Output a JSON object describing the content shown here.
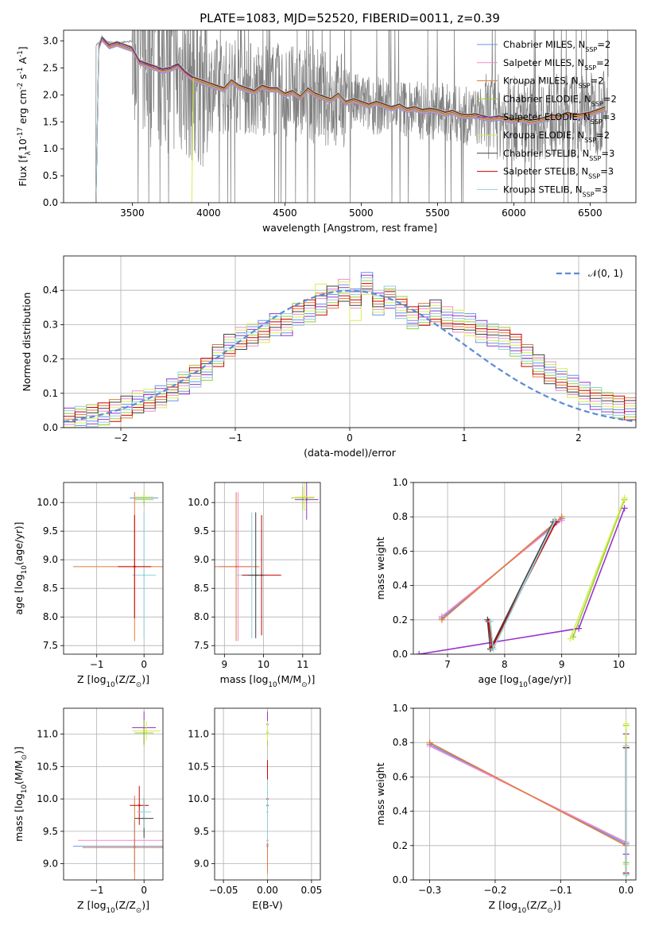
{
  "figure": {
    "title": "PLATE=1083, MJD=52520, FIBERID=0011, z=0.39"
  },
  "colors": {
    "models": [
      "#6495ed",
      "#f08ccf",
      "#e07b39",
      "#9acd32",
      "#9932cc",
      "#d4f04f",
      "#404040",
      "#cc0000",
      "#8fd0d8"
    ],
    "observed_spectrum": "#808080",
    "normal_curve": "#5b8bd6",
    "grid": "#b0b0b0"
  },
  "chart_data": [
    {
      "id": "spectrum",
      "type": "line",
      "title": "PLATE=1083, MJD=52520, FIBERID=0011, z=0.39",
      "xlabel": "wavelength [Angstrom, rest frame]",
      "ylabel": "Flux [f$_\\lambda$10$^{-17}$ erg cm$^{-2}$ s$^{-1}$ A$^{-1}$]",
      "xlim": [
        3050,
        6800
      ],
      "ylim": [
        0,
        3.2
      ],
      "xticks": [
        3500,
        4000,
        4500,
        5000,
        5500,
        6000,
        6500
      ],
      "yticks": [
        0.0,
        0.5,
        1.0,
        1.5,
        2.0,
        2.5,
        3.0
      ],
      "grid": false,
      "legend_position": "top-right",
      "legend": [
        "Chabrier MILES, N$_{SSP}$=2",
        "Salpeter MILES, N$_{SSP}$=2",
        "Kroupa MILES, N$_{SSP}$=2",
        "Chabrier ELODIE, N$_{SSP}$=2",
        "Salpeter ELODIE, N$_{SSP}$=3",
        "Kroupa ELODIE, N$_{SSP}$=2",
        "Chabrier STELIB, N$_{SSP}$=3",
        "Salpeter STELIB, N$_{SSP}$=3",
        "Kroupa STELIB, N$_{SSP}$=3"
      ],
      "observed_envelope": {
        "x": [
          3250,
          3300,
          3400,
          3500,
          3600,
          3700,
          3800,
          3900,
          4000,
          4100,
          4200,
          4300,
          4400,
          4500,
          4600,
          4700,
          4800,
          4900,
          5000,
          5100,
          5200,
          5300,
          5400,
          5500,
          5600,
          5700,
          5800,
          5900,
          6000,
          6100,
          6200,
          6300,
          6400,
          6500,
          6600
        ],
        "y": [
          2.9,
          3.0,
          2.95,
          3.0,
          2.6,
          2.5,
          2.45,
          2.3,
          2.2,
          2.15,
          2.2,
          2.1,
          2.1,
          2.05,
          2.0,
          2.0,
          1.9,
          1.9,
          1.85,
          1.8,
          1.8,
          1.75,
          1.7,
          1.7,
          1.65,
          1.6,
          1.6,
          1.6,
          1.55,
          1.55,
          1.6,
          1.6,
          1.6,
          1.65,
          1.7
        ]
      },
      "model_curve": {
        "x": [
          3250,
          3280,
          3300,
          3350,
          3400,
          3450,
          3500,
          3550,
          3600,
          3650,
          3700,
          3750,
          3800,
          3850,
          3900,
          3950,
          4000,
          4050,
          4100,
          4150,
          4200,
          4250,
          4300,
          4350,
          4400,
          4450,
          4500,
          4550,
          4600,
          4650,
          4700,
          4750,
          4800,
          4850,
          4900,
          4950,
          5000,
          5050,
          5100,
          5150,
          5200,
          5250,
          5300,
          5350,
          5400,
          5450,
          5500,
          5550,
          5600,
          5650,
          5700,
          5750,
          5800,
          5850,
          5900,
          5950,
          6000,
          6050,
          6100,
          6150,
          6200,
          6250,
          6300,
          6350,
          6400,
          6450,
          6500,
          6550,
          6600
        ],
        "y": [
          2.92,
          2.88,
          3.05,
          2.9,
          2.95,
          2.9,
          2.85,
          2.6,
          2.55,
          2.5,
          2.45,
          2.48,
          2.55,
          2.4,
          2.3,
          2.25,
          2.2,
          2.15,
          2.1,
          2.25,
          2.15,
          2.1,
          2.05,
          2.15,
          2.1,
          2.1,
          2.0,
          2.05,
          1.95,
          2.1,
          2.0,
          1.95,
          1.9,
          2.0,
          1.85,
          1.9,
          1.85,
          1.8,
          1.85,
          1.8,
          1.75,
          1.8,
          1.72,
          1.75,
          1.7,
          1.72,
          1.7,
          1.65,
          1.68,
          1.62,
          1.6,
          1.62,
          1.58,
          1.55,
          1.58,
          1.55,
          1.52,
          1.55,
          1.5,
          1.52,
          1.55,
          1.6,
          1.58,
          1.65,
          1.6,
          1.62,
          1.65,
          1.7,
          1.75
        ]
      }
    },
    {
      "id": "residuals",
      "type": "line",
      "xlabel": "(data-model)/error",
      "ylabel": "Normed distribution",
      "xlim": [
        -2.5,
        2.5
      ],
      "ylim": [
        0,
        0.5
      ],
      "xticks": [
        -2,
        -1,
        0,
        1,
        2
      ],
      "yticks": [
        0.0,
        0.1,
        0.2,
        0.3,
        0.4
      ],
      "grid": true,
      "legend_position": "top-right",
      "legend": [
        "$\\mathcal{N}(0, 1)$"
      ],
      "bin_width": 0.1,
      "hist_x_start": -2.5,
      "hist_base": [
        0.025,
        0.03,
        0.035,
        0.04,
        0.05,
        0.06,
        0.075,
        0.08,
        0.09,
        0.11,
        0.13,
        0.15,
        0.17,
        0.21,
        0.24,
        0.26,
        0.27,
        0.28,
        0.3,
        0.3,
        0.33,
        0.34,
        0.36,
        0.38,
        0.4,
        0.38,
        0.42,
        0.36,
        0.38,
        0.35,
        0.32,
        0.33,
        0.34,
        0.32,
        0.31,
        0.3,
        0.28,
        0.27,
        0.26,
        0.24,
        0.21,
        0.18,
        0.16,
        0.14,
        0.12,
        0.1,
        0.085,
        0.07,
        0.06,
        0.055
      ]
    },
    {
      "id": "age_vs_Z",
      "type": "scatter",
      "xlabel": "Z [log$_{10}$(Z/Z$_\\odot$)]",
      "ylabel": "age  [log$_{10}$(age/yr)]",
      "xlim": [
        -1.7,
        0.4
      ],
      "ylim": [
        7.35,
        10.35
      ],
      "xticks": [
        -1,
        0
      ],
      "yticks": [
        7.5,
        8.0,
        8.5,
        9.0,
        9.5,
        10.0
      ],
      "grid": true,
      "points": [
        {
          "x": 0.0,
          "y": 10.08,
          "xerr": 0.3,
          "yerr": 0.08,
          "s": 0
        },
        {
          "x": -0.2,
          "y": 8.88,
          "xerr": 1.3,
          "yerr": 1.3,
          "s": 2
        },
        {
          "x": 0.0,
          "y": 10.05,
          "xerr": 0.2,
          "yerr": 0.1,
          "s": 3
        },
        {
          "x": 0.0,
          "y": 8.73,
          "xerr": 0.25,
          "yerr": 1.1,
          "s": 8
        },
        {
          "x": 0.0,
          "y": 10.1,
          "xerr": 0.2,
          "yerr": 0.08,
          "s": 5
        },
        {
          "x": -0.2,
          "y": 8.88,
          "xerr": 0.35,
          "yerr": 0.9,
          "s": 7
        }
      ]
    },
    {
      "id": "age_vs_mass",
      "type": "scatter",
      "xlabel": "mass [log$_{10}$(M/M$_\\odot$)]",
      "ylabel": "",
      "xlim": [
        8.75,
        11.45
      ],
      "ylim": [
        7.35,
        10.35
      ],
      "xticks": [
        9,
        10,
        11
      ],
      "yticks": [
        7.5,
        8.0,
        8.5,
        9.0,
        9.5,
        10.0
      ],
      "grid": true,
      "points": [
        {
          "x": 9.3,
          "y": 8.88,
          "xerr": 0.4,
          "yerr": 0,
          "s": 0
        },
        {
          "x": 9.35,
          "y": 8.88,
          "xerr": 0.5,
          "yerr": 1.3,
          "s": 1
        },
        {
          "x": 9.3,
          "y": 8.88,
          "xerr": 0.6,
          "yerr": 1.3,
          "s": 2
        },
        {
          "x": 9.7,
          "y": 8.73,
          "xerr": 0.4,
          "yerr": 1.1,
          "s": 8
        },
        {
          "x": 9.95,
          "y": 8.73,
          "xerr": 0.5,
          "yerr": 1.05,
          "s": 7
        },
        {
          "x": 11.0,
          "y": 10.08,
          "xerr": 0.3,
          "yerr": 0.2,
          "s": 3
        },
        {
          "x": 11.1,
          "y": 10.05,
          "xerr": 0.3,
          "yerr": 0.35,
          "s": 4
        },
        {
          "x": 11.05,
          "y": 10.1,
          "xerr": 0.25,
          "yerr": 0.25,
          "s": 5
        },
        {
          "x": 9.8,
          "y": 8.73,
          "xerr": 0.2,
          "yerr": 1.1,
          "s": 6
        }
      ]
    },
    {
      "id": "weight_vs_age",
      "type": "line",
      "xlabel": "age  [log$_{10}$(age/yr)]",
      "ylabel": "mass weight",
      "xlim": [
        6.4,
        10.3
      ],
      "ylim": [
        0,
        1.0
      ],
      "xticks": [
        7,
        8,
        9,
        10
      ],
      "yticks": [
        0.0,
        0.2,
        0.4,
        0.6,
        0.8,
        1.0
      ],
      "grid": true,
      "series": [
        {
          "s": 0,
          "x": [
            6.9,
            9.0
          ],
          "y": [
            0.21,
            0.79
          ]
        },
        {
          "s": 1,
          "x": [
            6.9,
            9.0
          ],
          "y": [
            0.22,
            0.78
          ]
        },
        {
          "s": 2,
          "x": [
            6.9,
            9.0
          ],
          "y": [
            0.2,
            0.8
          ]
        },
        {
          "s": 3,
          "x": [
            9.2,
            10.1
          ],
          "y": [
            0.1,
            0.9
          ]
        },
        {
          "s": 4,
          "x": [
            6.5,
            9.3,
            10.1
          ],
          "y": [
            0.0,
            0.15,
            0.85
          ]
        },
        {
          "s": 5,
          "x": [
            9.15,
            10.1
          ],
          "y": [
            0.09,
            0.91
          ]
        },
        {
          "s": 6,
          "x": [
            7.7,
            7.75,
            8.85
          ],
          "y": [
            0.2,
            0.03,
            0.77
          ]
        },
        {
          "s": 7,
          "x": [
            7.72,
            7.78,
            8.9
          ],
          "y": [
            0.19,
            0.04,
            0.77
          ]
        },
        {
          "s": 8,
          "x": [
            7.75,
            7.8,
            8.88
          ],
          "y": [
            0.19,
            0.03,
            0.78
          ]
        }
      ]
    },
    {
      "id": "mass_vs_Z",
      "type": "scatter",
      "xlabel": "Z [log$_{10}$(Z/Z$_\\odot$)]",
      "ylabel": "mass [log$_{10}$(M/M$_\\odot$)]",
      "xlim": [
        -1.7,
        0.4
      ],
      "ylim": [
        8.75,
        11.4
      ],
      "xticks": [
        -1,
        0
      ],
      "yticks": [
        9.0,
        9.5,
        10.0,
        10.5,
        11.0
      ],
      "grid": true,
      "points": [
        {
          "x": 0.0,
          "y": 11.1,
          "xerr": 0.25,
          "yerr": 0.25,
          "s": 4
        },
        {
          "x": 0.05,
          "y": 11.05,
          "xerr": 0.3,
          "yerr": 0.15,
          "s": 5
        },
        {
          "x": 0.0,
          "y": 11.02,
          "xerr": 0.2,
          "yerr": 0.2,
          "s": 3
        },
        {
          "x": -0.2,
          "y": 9.27,
          "xerr": 1.3,
          "yerr": 0.4,
          "s": 0
        },
        {
          "x": -0.2,
          "y": 9.36,
          "xerr": 1.2,
          "yerr": 0,
          "s": 1
        },
        {
          "x": -0.2,
          "y": 9.25,
          "xerr": 1.1,
          "yerr": 0.8,
          "s": 2
        },
        {
          "x": -0.1,
          "y": 9.9,
          "xerr": 0.2,
          "yerr": 0.3,
          "s": 7
        },
        {
          "x": 0.0,
          "y": 9.7,
          "xerr": 0.2,
          "yerr": 0.3,
          "s": 6
        },
        {
          "x": 0.0,
          "y": 9.8,
          "xerr": 0.15,
          "yerr": 0.25,
          "s": 8
        }
      ]
    },
    {
      "id": "mass_vs_ebv",
      "type": "scatter",
      "xlabel": "E(B-V)",
      "ylabel": "",
      "xlim": [
        -0.06,
        0.06
      ],
      "ylim": [
        8.75,
        11.4
      ],
      "xticks": [
        -0.05,
        0.0,
        0.05
      ],
      "xtick_labels": [
        "−0.05",
        "0.00",
        "0.05"
      ],
      "yticks": [
        9.0,
        9.5,
        10.0,
        10.5,
        11.0
      ],
      "grid": true,
      "points": [
        {
          "x": 0.0,
          "y": 9.27,
          "xerr": 0,
          "yerr": 0.4,
          "s": 0
        },
        {
          "x": 0.0,
          "y": 9.36,
          "xerr": 0,
          "yerr": 0.35,
          "s": 1
        },
        {
          "x": 0.0,
          "y": 9.3,
          "xerr": 0,
          "yerr": 0.45,
          "s": 2
        },
        {
          "x": 0.0,
          "y": 11.02,
          "xerr": 0,
          "yerr": 0.2,
          "s": 3
        },
        {
          "x": 0.0,
          "y": 11.15,
          "xerr": 0,
          "yerr": 0.2,
          "s": 4
        },
        {
          "x": 0.0,
          "y": 11.05,
          "xerr": 0,
          "yerr": 0.15,
          "s": 5
        },
        {
          "x": 0.0,
          "y": 9.9,
          "xerr": 0,
          "yerr": 0.6,
          "s": 6
        },
        {
          "x": 0.0,
          "y": 10.0,
          "xerr": 0,
          "yerr": 0.6,
          "s": 7
        },
        {
          "x": 0.0,
          "y": 9.8,
          "xerr": 0,
          "yerr": 0.5,
          "s": 8
        }
      ]
    },
    {
      "id": "weight_vs_Z",
      "type": "line",
      "xlabel": "Z [log$_{10}$(Z/Z$_\\odot$)]",
      "ylabel": "mass weight",
      "xlim": [
        -0.325,
        0.015
      ],
      "ylim": [
        0,
        1.0
      ],
      "xticks": [
        -0.3,
        -0.2,
        -0.1,
        0.0
      ],
      "xtick_labels": [
        "−0.3",
        "−0.2",
        "−0.1",
        "0.0"
      ],
      "yticks": [
        0.0,
        0.2,
        0.4,
        0.6,
        0.8,
        1.0
      ],
      "grid": true,
      "series": [
        {
          "s": 0,
          "x": [
            -0.3,
            0.0
          ],
          "y": [
            0.79,
            0.21
          ]
        },
        {
          "s": 1,
          "x": [
            -0.3,
            0.0
          ],
          "y": [
            0.78,
            0.22
          ]
        },
        {
          "s": 2,
          "x": [
            -0.3,
            0.0
          ],
          "y": [
            0.8,
            0.2
          ]
        },
        {
          "s": 3,
          "x": [
            0.0,
            0.0
          ],
          "y": [
            0.1,
            0.9
          ]
        },
        {
          "s": 4,
          "x": [
            0.0,
            0.0
          ],
          "y": [
            0.15,
            0.85
          ]
        },
        {
          "s": 5,
          "x": [
            0.0,
            0.0
          ],
          "y": [
            0.09,
            0.91
          ]
        },
        {
          "s": 6,
          "x": [
            0.0,
            0.0
          ],
          "y": [
            0.03,
            0.77
          ]
        },
        {
          "s": 7,
          "x": [
            0.0,
            0.0
          ],
          "y": [
            0.04,
            0.77
          ]
        },
        {
          "s": 8,
          "x": [
            0.0,
            0.0
          ],
          "y": [
            0.03,
            0.78
          ]
        }
      ]
    }
  ]
}
